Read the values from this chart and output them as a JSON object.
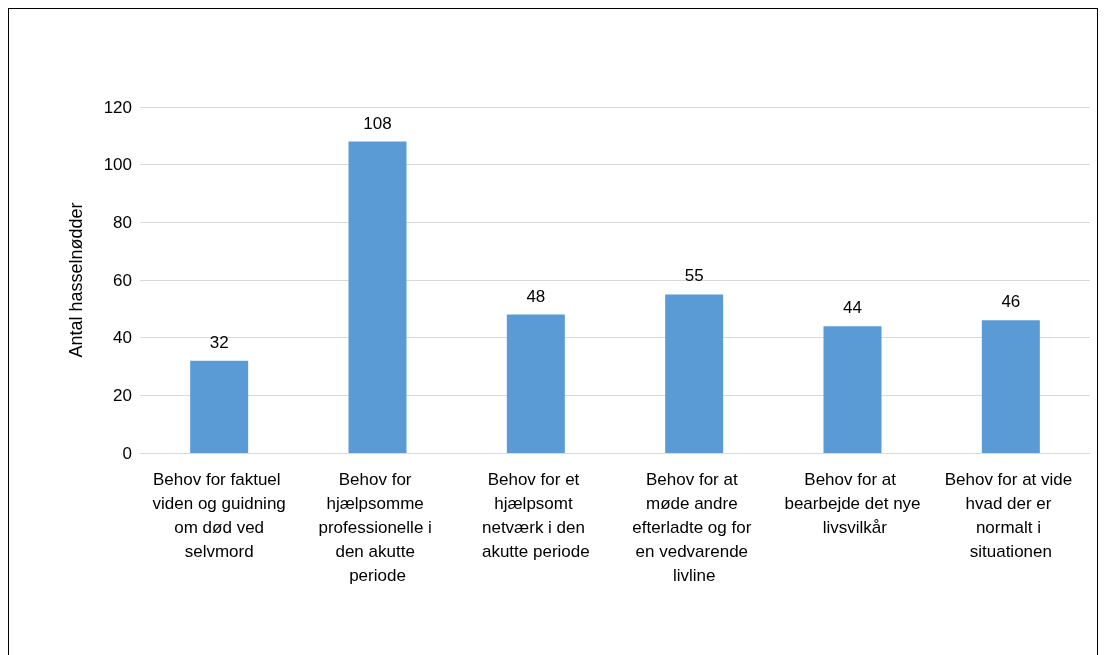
{
  "chart_data": {
    "type": "bar",
    "ylabel": "Antal hasselnødder",
    "categories": [
      "Behov for faktuel viden og guidning om død ved selvmord",
      "Behov for hjælpsomme professionelle i den akutte periode",
      "Behov for et hjælpsomt netværk i den akutte periode",
      "Behov for at møde andre efterladte og for en vedvarende livline",
      "Behov for at bearbejde det nye livsvilkår",
      "Behov for at vide hvad der er normalt i situationen"
    ],
    "values": [
      32,
      108,
      48,
      55,
      44,
      46
    ],
    "color": "#5b9bd5",
    "ylim": [
      0,
      120
    ],
    "yticks": [
      0,
      20,
      40,
      60,
      80,
      100,
      120
    ],
    "grid": "y",
    "data_labels": true
  }
}
